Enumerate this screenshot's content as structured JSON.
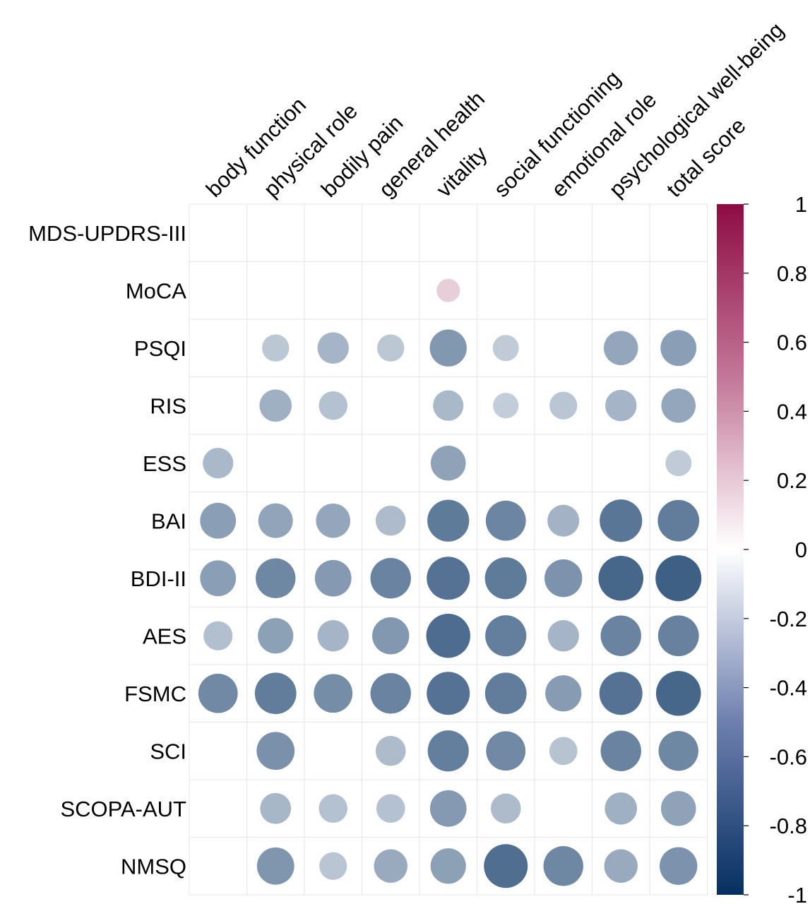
{
  "chart_data": {
    "type": "heatmap",
    "style": "circle-correlation-matrix",
    "columns": [
      "body function",
      "physical role",
      "bodily pain",
      "general health",
      "vitality",
      "social functioning",
      "emotional role",
      "psychological well-being",
      "total score"
    ],
    "rows": [
      "MDS-UPDRS-III",
      "MoCA",
      "PSQI",
      "RIS",
      "ESS",
      "BAI",
      "BDI-II",
      "AES",
      "FSMC",
      "SCI",
      "SCOPA-AUT",
      "NMSQ"
    ],
    "values": [
      [
        null,
        null,
        null,
        null,
        null,
        null,
        null,
        null,
        null
      ],
      [
        null,
        null,
        null,
        null,
        0.2,
        null,
        null,
        null,
        null
      ],
      [
        null,
        -0.27,
        -0.36,
        -0.27,
        -0.5,
        -0.25,
        null,
        -0.43,
        -0.47
      ],
      [
        null,
        -0.38,
        -0.3,
        null,
        -0.34,
        -0.24,
        -0.28,
        -0.36,
        -0.43
      ],
      [
        -0.34,
        null,
        null,
        null,
        -0.45,
        null,
        null,
        null,
        -0.25
      ],
      [
        -0.47,
        -0.44,
        -0.43,
        -0.33,
        -0.64,
        -0.59,
        -0.37,
        -0.66,
        -0.63
      ],
      [
        -0.47,
        -0.58,
        -0.49,
        -0.6,
        -0.68,
        -0.64,
        -0.52,
        -0.74,
        -0.77
      ],
      [
        -0.31,
        -0.46,
        -0.36,
        -0.5,
        -0.71,
        -0.62,
        -0.36,
        -0.6,
        -0.61
      ],
      [
        -0.57,
        -0.63,
        -0.55,
        -0.6,
        -0.68,
        -0.63,
        -0.48,
        -0.68,
        -0.74
      ],
      [
        null,
        -0.53,
        null,
        -0.33,
        -0.62,
        -0.57,
        -0.29,
        -0.6,
        -0.58
      ],
      [
        null,
        -0.35,
        -0.3,
        -0.3,
        -0.49,
        -0.33,
        null,
        -0.38,
        -0.45
      ],
      [
        null,
        -0.51,
        -0.28,
        -0.41,
        -0.46,
        -0.7,
        -0.58,
        -0.41,
        -0.52
      ]
    ],
    "colorbar": {
      "ticks": [
        "1",
        "0.8",
        "0.6",
        "0.4",
        "0.2",
        "0",
        "-0.2",
        "-0.4",
        "-0.6",
        "-0.8",
        "-1"
      ],
      "range": [
        -1,
        1
      ],
      "colors": {
        "negative": "#053061",
        "zero": "#ffffff",
        "positive": "#8e0b43"
      }
    },
    "grid": true
  }
}
